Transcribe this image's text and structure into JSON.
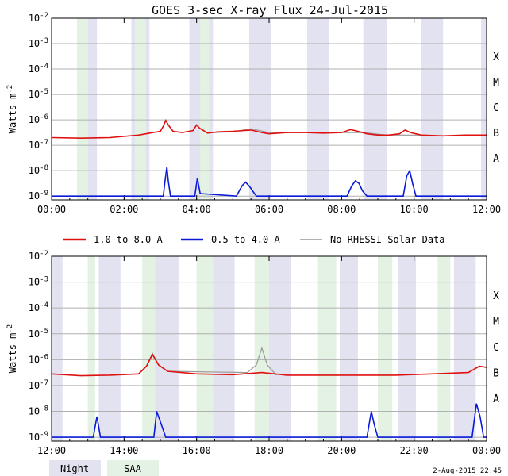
{
  "chart_data": {
    "type": "line",
    "title": "GOES 3-sec X-ray Flux   24-Jul-2015",
    "ylabel": "Watts m-2",
    "y_scale": "log",
    "ylim": [
      1e-09,
      0.01
    ],
    "y_ticks": [
      {
        "exp": -2,
        "base": "10",
        "sup": "-2"
      },
      {
        "exp": -3,
        "base": "10",
        "sup": "-3"
      },
      {
        "exp": -4,
        "base": "10",
        "sup": "-4"
      },
      {
        "exp": -5,
        "base": "10",
        "sup": "-5"
      },
      {
        "exp": -6,
        "base": "10",
        "sup": "-6"
      },
      {
        "exp": -7,
        "base": "10",
        "sup": "-7"
      },
      {
        "exp": -8,
        "base": "10",
        "sup": "-8"
      },
      {
        "exp": -9,
        "base": "10",
        "sup": "-9"
      }
    ],
    "flare_classes": [
      {
        "label": "X",
        "exp": -3.5
      },
      {
        "label": "M",
        "exp": -4.5
      },
      {
        "label": "C",
        "exp": -5.5
      },
      {
        "label": "B",
        "exp": -6.5
      },
      {
        "label": "A",
        "exp": -7.5
      }
    ],
    "panels": [
      {
        "id": "top",
        "x_range_hours": [
          0,
          12
        ],
        "x_tick_labels": [
          "00:00",
          "02:00",
          "04:00",
          "06:00",
          "08:00",
          "10:00",
          "12:00"
        ],
        "night": [
          [
            1.0,
            1.25
          ],
          [
            2.2,
            2.7
          ],
          [
            3.8,
            4.45
          ],
          [
            5.45,
            6.05
          ],
          [
            7.05,
            7.65
          ],
          [
            8.6,
            9.25
          ],
          [
            10.2,
            10.8
          ],
          [
            11.85,
            12.0
          ]
        ],
        "saa": [
          [
            0.7,
            1.0
          ],
          [
            2.3,
            2.6
          ],
          [
            4.1,
            4.35
          ]
        ],
        "long": {
          "name": "1.0 to 8.0 A",
          "points": [
            [
              0.0,
              -6.7
            ],
            [
              0.8,
              -6.72
            ],
            [
              1.6,
              -6.7
            ],
            [
              2.4,
              -6.6
            ],
            [
              2.8,
              -6.5
            ],
            [
              3.0,
              -6.45
            ],
            [
              3.08,
              -6.25
            ],
            [
              3.15,
              -6.02
            ],
            [
              3.22,
              -6.2
            ],
            [
              3.35,
              -6.45
            ],
            [
              3.6,
              -6.5
            ],
            [
              3.9,
              -6.42
            ],
            [
              4.0,
              -6.2
            ],
            [
              4.08,
              -6.32
            ],
            [
              4.3,
              -6.52
            ],
            [
              4.6,
              -6.47
            ],
            [
              5.0,
              -6.45
            ],
            [
              5.5,
              -6.4
            ],
            [
              5.8,
              -6.5
            ],
            [
              6.0,
              -6.55
            ],
            [
              6.5,
              -6.5
            ],
            [
              7.0,
              -6.5
            ],
            [
              7.5,
              -6.52
            ],
            [
              8.0,
              -6.5
            ],
            [
              8.25,
              -6.38
            ],
            [
              8.45,
              -6.45
            ],
            [
              8.7,
              -6.55
            ],
            [
              9.0,
              -6.6
            ],
            [
              9.3,
              -6.6
            ],
            [
              9.6,
              -6.55
            ],
            [
              9.75,
              -6.4
            ],
            [
              9.9,
              -6.5
            ],
            [
              10.2,
              -6.6
            ],
            [
              10.8,
              -6.63
            ],
            [
              11.4,
              -6.6
            ],
            [
              12.0,
              -6.6
            ]
          ]
        },
        "short": {
          "name": "0.5 to 4.0 A",
          "points": [
            [
              0.0,
              -9.0
            ],
            [
              1.2,
              -9.0
            ],
            [
              3.08,
              -9.0
            ],
            [
              3.12,
              -8.5
            ],
            [
              3.18,
              -7.85
            ],
            [
              3.22,
              -8.4
            ],
            [
              3.28,
              -9.0
            ],
            [
              3.95,
              -9.0
            ],
            [
              4.02,
              -8.3
            ],
            [
              4.1,
              -8.9
            ],
            [
              5.1,
              -9.0
            ],
            [
              5.25,
              -8.6
            ],
            [
              5.35,
              -8.45
            ],
            [
              5.45,
              -8.6
            ],
            [
              5.55,
              -8.8
            ],
            [
              5.65,
              -9.0
            ],
            [
              8.15,
              -9.0
            ],
            [
              8.28,
              -8.6
            ],
            [
              8.38,
              -8.4
            ],
            [
              8.48,
              -8.5
            ],
            [
              8.58,
              -8.8
            ],
            [
              8.7,
              -9.0
            ],
            [
              9.7,
              -9.0
            ],
            [
              9.8,
              -8.2
            ],
            [
              9.88,
              -8.0
            ],
            [
              9.96,
              -8.5
            ],
            [
              10.05,
              -9.0
            ],
            [
              12.0,
              -9.0
            ]
          ]
        },
        "norhessi": {
          "name": "No RHESSI Solar Data",
          "points": [
            [
              4.45,
              -6.5
            ],
            [
              5.0,
              -6.47
            ],
            [
              5.5,
              -6.35
            ],
            [
              6.0,
              -6.5
            ],
            [
              7.0,
              -6.5
            ],
            [
              8.6,
              -6.5
            ],
            [
              9.25,
              -6.6
            ],
            [
              10.2,
              -6.6
            ],
            [
              10.8,
              -6.63
            ],
            [
              11.85,
              -6.6
            ]
          ]
        }
      },
      {
        "id": "bottom",
        "x_range_hours": [
          12,
          24
        ],
        "x_tick_labels": [
          "12:00",
          "14:00",
          "16:00",
          "18:00",
          "20:00",
          "22:00",
          "00:00"
        ],
        "night": [
          [
            12.0,
            12.3
          ],
          [
            13.3,
            13.9
          ],
          [
            14.85,
            15.5
          ],
          [
            16.45,
            17.05
          ],
          [
            18.0,
            18.6
          ],
          [
            19.95,
            20.45
          ],
          [
            21.55,
            22.05
          ],
          [
            23.1,
            23.7
          ]
        ],
        "saa": [
          [
            13.0,
            13.2
          ],
          [
            14.5,
            14.85
          ],
          [
            16.0,
            16.45
          ],
          [
            17.6,
            18.0
          ],
          [
            19.35,
            19.85
          ],
          [
            21.0,
            21.4
          ],
          [
            22.65,
            23.0
          ]
        ],
        "long": {
          "name": "1.0 to 8.0 A",
          "points": [
            [
              12.0,
              -6.55
            ],
            [
              12.8,
              -6.62
            ],
            [
              13.6,
              -6.6
            ],
            [
              14.4,
              -6.55
            ],
            [
              14.62,
              -6.25
            ],
            [
              14.78,
              -5.8
            ],
            [
              14.95,
              -6.2
            ],
            [
              15.2,
              -6.45
            ],
            [
              16.0,
              -6.55
            ],
            [
              17.0,
              -6.58
            ],
            [
              17.8,
              -6.5
            ],
            [
              18.5,
              -6.6
            ],
            [
              19.5,
              -6.6
            ],
            [
              20.5,
              -6.6
            ],
            [
              21.5,
              -6.6
            ],
            [
              22.5,
              -6.55
            ],
            [
              23.5,
              -6.5
            ],
            [
              23.8,
              -6.25
            ],
            [
              24.0,
              -6.3
            ]
          ]
        },
        "short": {
          "name": "0.5 to 4.0 A",
          "points": [
            [
              12.0,
              -9.0
            ],
            [
              13.15,
              -9.0
            ],
            [
              13.25,
              -8.2
            ],
            [
              13.35,
              -9.0
            ],
            [
              14.82,
              -9.0
            ],
            [
              14.9,
              -8.0
            ],
            [
              15.05,
              -8.6
            ],
            [
              15.15,
              -9.0
            ],
            [
              20.7,
              -9.0
            ],
            [
              20.82,
              -8.0
            ],
            [
              20.9,
              -8.5
            ],
            [
              21.0,
              -9.0
            ],
            [
              23.6,
              -9.0
            ],
            [
              23.72,
              -7.7
            ],
            [
              23.82,
              -8.2
            ],
            [
              23.92,
              -9.0
            ],
            [
              24.0,
              -9.0
            ]
          ]
        },
        "norhessi": {
          "name": "No RHESSI Solar Data",
          "points": [
            [
              14.4,
              -6.55
            ],
            [
              14.62,
              -6.25
            ],
            [
              14.78,
              -5.75
            ],
            [
              14.95,
              -6.2
            ],
            [
              15.2,
              -6.45
            ],
            [
              17.4,
              -6.5
            ],
            [
              17.65,
              -6.2
            ],
            [
              17.8,
              -5.55
            ],
            [
              17.95,
              -6.2
            ],
            [
              18.2,
              -6.6
            ]
          ]
        }
      }
    ],
    "legend": [
      {
        "label": "1.0 to 8.0 A",
        "color": "#e01010"
      },
      {
        "label": "0.5 to 4.0 A",
        "color": "#0a1ad8"
      },
      {
        "label": "No RHESSI Solar Data",
        "color": "#999999"
      }
    ],
    "period_legend": {
      "night": "Night",
      "saa": "SAA"
    },
    "colors": {
      "night": "#e2e2f0",
      "saa": "#e3f2e3",
      "grid": "#b0b0b0"
    }
  },
  "footer": {
    "timestamp": "2-Aug-2015 22:45"
  }
}
